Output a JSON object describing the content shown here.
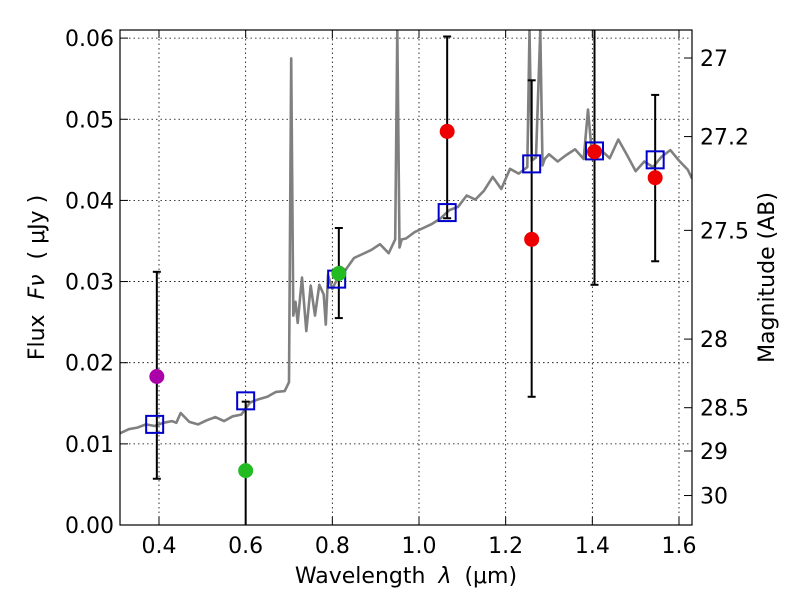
{
  "chart_data": {
    "type": "scatter",
    "xlabel": "Wavelength",
    "xlabel_symbol": "λ",
    "xlabel_unit": "(μm)",
    "ylabel": "Flux",
    "ylabel_symbol": "Fν",
    "ylabel_unit": "( μJy )",
    "right_ylabel": "Magnitude (AB)",
    "xlim": [
      0.31,
      1.63
    ],
    "ylim": [
      0.0,
      0.061
    ],
    "grid": true,
    "x_ticks": [
      {
        "value": 0.4,
        "label": "0.4"
      },
      {
        "value": 0.6,
        "label": "0.6"
      },
      {
        "value": 0.8,
        "label": "0.8"
      },
      {
        "value": 1.0,
        "label": "1.0"
      },
      {
        "value": 1.2,
        "label": "1.2"
      },
      {
        "value": 1.4,
        "label": "1.4"
      },
      {
        "value": 1.6,
        "label": "1.6"
      }
    ],
    "y_ticks": [
      {
        "value": 0.0,
        "label": "0.00"
      },
      {
        "value": 0.01,
        "label": "0.01"
      },
      {
        "value": 0.02,
        "label": "0.02"
      },
      {
        "value": 0.03,
        "label": "0.03"
      },
      {
        "value": 0.04,
        "label": "0.04"
      },
      {
        "value": 0.05,
        "label": "0.05"
      },
      {
        "value": 0.06,
        "label": "0.06"
      }
    ],
    "right_ticks": [
      {
        "value": 27.0,
        "label": "27"
      },
      {
        "value": 27.2,
        "label": "27.2"
      },
      {
        "value": 27.5,
        "label": "27.5"
      },
      {
        "value": 28.0,
        "label": "28"
      },
      {
        "value": 28.5,
        "label": "28.5"
      },
      {
        "value": 29.0,
        "label": "29"
      },
      {
        "value": 30.0,
        "label": "30"
      }
    ],
    "observed": [
      {
        "x": 0.395,
        "y": 0.0183,
        "color": "#aa00aa",
        "err_low": 0.0057,
        "err_high": 0.0312
      },
      {
        "x": 0.6,
        "y": 0.0067,
        "color": "#22bb22",
        "err_low": 0.0,
        "err_high": 0.0152
      },
      {
        "x": 0.815,
        "y": 0.031,
        "color": "#22bb22",
        "err_low": 0.0255,
        "err_high": 0.0366
      },
      {
        "x": 1.065,
        "y": 0.0485,
        "color": "#ee0000",
        "err_low": 0.0378,
        "err_high": 0.0602
      },
      {
        "x": 1.26,
        "y": 0.0352,
        "color": "#ee0000",
        "err_low": 0.0158,
        "err_high": 0.0548
      },
      {
        "x": 1.405,
        "y": 0.046,
        "color": "#ee0000",
        "err_low": 0.0296,
        "err_high": 0.0615
      },
      {
        "x": 1.545,
        "y": 0.0428,
        "color": "#ee0000",
        "err_low": 0.0325,
        "err_high": 0.053
      }
    ],
    "model_photometry": [
      {
        "x": 0.39,
        "y": 0.0124
      },
      {
        "x": 0.6,
        "y": 0.0153
      },
      {
        "x": 0.81,
        "y": 0.0303
      },
      {
        "x": 1.065,
        "y": 0.0385
      },
      {
        "x": 1.26,
        "y": 0.0445
      },
      {
        "x": 1.405,
        "y": 0.0461
      },
      {
        "x": 1.545,
        "y": 0.045
      }
    ],
    "model_spectrum": {
      "color": "#808080",
      "x": [
        0.31,
        0.33,
        0.35,
        0.37,
        0.39,
        0.41,
        0.43,
        0.44,
        0.45,
        0.47,
        0.49,
        0.51,
        0.53,
        0.55,
        0.57,
        0.59,
        0.61,
        0.63,
        0.65,
        0.67,
        0.69,
        0.7,
        0.705,
        0.71,
        0.715,
        0.72,
        0.73,
        0.74,
        0.75,
        0.76,
        0.77,
        0.78,
        0.785,
        0.79,
        0.8,
        0.81,
        0.82,
        0.83,
        0.85,
        0.87,
        0.89,
        0.91,
        0.93,
        0.945,
        0.95,
        0.955,
        0.96,
        0.97,
        0.99,
        1.01,
        1.03,
        1.05,
        1.07,
        1.09,
        1.11,
        1.13,
        1.15,
        1.17,
        1.19,
        1.21,
        1.23,
        1.25,
        1.255,
        1.26,
        1.27,
        1.28,
        1.285,
        1.29,
        1.3,
        1.32,
        1.34,
        1.36,
        1.38,
        1.39,
        1.4,
        1.42,
        1.44,
        1.46,
        1.48,
        1.5,
        1.52,
        1.54,
        1.56,
        1.58,
        1.6,
        1.62,
        1.63
      ],
      "y": [
        0.0113,
        0.0118,
        0.012,
        0.0124,
        0.0122,
        0.0126,
        0.0128,
        0.0126,
        0.0138,
        0.0127,
        0.0124,
        0.0129,
        0.0133,
        0.0128,
        0.0134,
        0.0136,
        0.0151,
        0.0155,
        0.0158,
        0.0164,
        0.0165,
        0.0176,
        0.0575,
        0.0258,
        0.0275,
        0.0249,
        0.0305,
        0.0239,
        0.0295,
        0.0258,
        0.0296,
        0.0284,
        0.0247,
        0.0308,
        0.0291,
        0.0302,
        0.0318,
        0.0314,
        0.0329,
        0.0334,
        0.0339,
        0.0346,
        0.0335,
        0.0352,
        0.061,
        0.0342,
        0.0352,
        0.0353,
        0.0361,
        0.0366,
        0.0371,
        0.0378,
        0.0388,
        0.0392,
        0.0406,
        0.0401,
        0.0412,
        0.0429,
        0.0414,
        0.0439,
        0.0433,
        0.0441,
        0.061,
        0.0449,
        0.0453,
        0.061,
        0.0443,
        0.0451,
        0.0457,
        0.0448,
        0.0456,
        0.0463,
        0.0451,
        0.0512,
        0.0452,
        0.0462,
        0.0452,
        0.0475,
        0.0456,
        0.0436,
        0.0448,
        0.0441,
        0.0454,
        0.0462,
        0.0449,
        0.0438,
        0.0427
      ]
    }
  }
}
